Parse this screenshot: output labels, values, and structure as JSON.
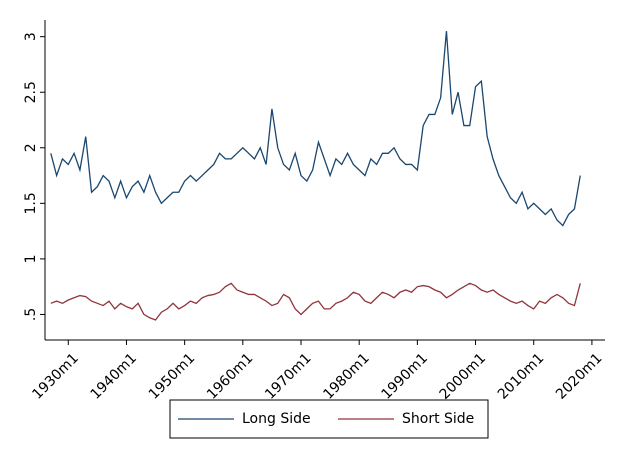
{
  "chart_data": {
    "type": "line",
    "x": [
      "1927m1",
      "1928m1",
      "1929m1",
      "1930m1",
      "1931m1",
      "1932m1",
      "1933m1",
      "1934m1",
      "1935m1",
      "1936m1",
      "1937m1",
      "1938m1",
      "1939m1",
      "1940m1",
      "1941m1",
      "1942m1",
      "1943m1",
      "1944m1",
      "1945m1",
      "1946m1",
      "1947m1",
      "1948m1",
      "1949m1",
      "1950m1",
      "1951m1",
      "1952m1",
      "1953m1",
      "1954m1",
      "1955m1",
      "1956m1",
      "1957m1",
      "1958m1",
      "1959m1",
      "1960m1",
      "1961m1",
      "1962m1",
      "1963m1",
      "1964m1",
      "1965m1",
      "1966m1",
      "1967m1",
      "1968m1",
      "1969m1",
      "1970m1",
      "1971m1",
      "1972m1",
      "1973m1",
      "1974m1",
      "1975m1",
      "1976m1",
      "1977m1",
      "1978m1",
      "1979m1",
      "1980m1",
      "1981m1",
      "1982m1",
      "1983m1",
      "1984m1",
      "1985m1",
      "1986m1",
      "1987m1",
      "1988m1",
      "1989m1",
      "1990m1",
      "1991m1",
      "1992m1",
      "1993m1",
      "1994m1",
      "1995m1",
      "1996m1",
      "1997m1",
      "1998m1",
      "1999m1",
      "2000m1",
      "2001m1",
      "2002m1",
      "2003m1",
      "2004m1",
      "2005m1",
      "2006m1",
      "2007m1",
      "2008m1",
      "2009m1",
      "2010m1",
      "2011m1",
      "2012m1",
      "2013m1",
      "2014m1",
      "2015m1",
      "2016m1",
      "2017m1",
      "2018m1"
    ],
    "series": [
      {
        "name": "Long Side",
        "color": "#1a476f",
        "values": [
          1.95,
          1.75,
          1.9,
          1.85,
          1.95,
          1.8,
          2.1,
          1.6,
          1.65,
          1.75,
          1.7,
          1.55,
          1.7,
          1.55,
          1.65,
          1.7,
          1.6,
          1.75,
          1.6,
          1.5,
          1.55,
          1.6,
          1.6,
          1.7,
          1.75,
          1.7,
          1.75,
          1.8,
          1.85,
          1.95,
          1.9,
          1.9,
          1.95,
          2.0,
          1.95,
          1.9,
          2.0,
          1.85,
          2.35,
          2.0,
          1.85,
          1.8,
          1.95,
          1.75,
          1.7,
          1.8,
          2.05,
          1.9,
          1.75,
          1.9,
          1.85,
          1.95,
          1.85,
          1.8,
          1.75,
          1.9,
          1.85,
          1.95,
          1.95,
          2.0,
          1.9,
          1.85,
          1.85,
          1.8,
          2.2,
          2.3,
          2.3,
          2.45,
          3.05,
          2.3,
          2.5,
          2.2,
          2.2,
          2.55,
          2.6,
          2.1,
          1.9,
          1.75,
          1.65,
          1.55,
          1.5,
          1.6,
          1.45,
          1.5,
          1.45,
          1.4,
          1.45,
          1.35,
          1.3,
          1.4,
          1.45,
          1.75
        ]
      },
      {
        "name": "Short Side",
        "color": "#90353b",
        "values": [
          0.6,
          0.62,
          0.6,
          0.63,
          0.65,
          0.67,
          0.66,
          0.62,
          0.6,
          0.58,
          0.62,
          0.55,
          0.6,
          0.57,
          0.55,
          0.6,
          0.5,
          0.47,
          0.45,
          0.52,
          0.55,
          0.6,
          0.55,
          0.58,
          0.62,
          0.6,
          0.65,
          0.67,
          0.68,
          0.7,
          0.75,
          0.78,
          0.72,
          0.7,
          0.68,
          0.68,
          0.65,
          0.62,
          0.58,
          0.6,
          0.68,
          0.65,
          0.55,
          0.5,
          0.55,
          0.6,
          0.62,
          0.55,
          0.55,
          0.6,
          0.62,
          0.65,
          0.7,
          0.68,
          0.62,
          0.6,
          0.65,
          0.7,
          0.68,
          0.65,
          0.7,
          0.72,
          0.7,
          0.75,
          0.76,
          0.75,
          0.72,
          0.7,
          0.65,
          0.68,
          0.72,
          0.75,
          0.78,
          0.76,
          0.72,
          0.7,
          0.72,
          0.68,
          0.65,
          0.62,
          0.6,
          0.62,
          0.58,
          0.55,
          0.62,
          0.6,
          0.65,
          0.68,
          0.65,
          0.6,
          0.58,
          0.78
        ]
      }
    ],
    "xlim": [
      "1926m1",
      "2022m4"
    ],
    "xticks": [
      "1930m1",
      "1940m1",
      "1950m1",
      "1960m1",
      "1970m1",
      "1980m1",
      "1990m1",
      "2000m1",
      "2010m1",
      "2020m1"
    ],
    "ylim": [
      0.27,
      3.15
    ],
    "yticks": [
      {
        "value": 0.5,
        "label": ".5"
      },
      1,
      1.5,
      2,
      2.5,
      3
    ],
    "grid": false,
    "legend": "bottom"
  }
}
